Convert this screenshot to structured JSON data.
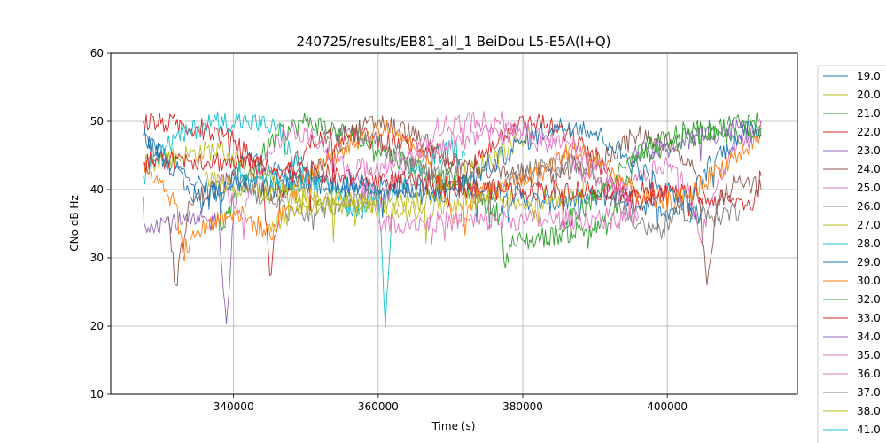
{
  "chart_data": {
    "type": "line",
    "title": "240725/results/EB81_all_1 BeiDou L5-E5A(I+Q)",
    "xlabel": "Time (s)",
    "ylabel": "CNo dB Hz",
    "xlim": [
      323000,
      418000
    ],
    "ylim": [
      10,
      60
    ],
    "x_ticks": [
      340000,
      360000,
      380000,
      400000
    ],
    "x_tick_labels": [
      "340000",
      "360000",
      "380000",
      "400000"
    ],
    "y_ticks": [
      10,
      20,
      30,
      40,
      50,
      60
    ],
    "y_tick_labels": [
      "10",
      "20",
      "30",
      "40",
      "50",
      "60"
    ],
    "grid": true,
    "legend_position": "right, outside plot, clipped",
    "series": [
      {
        "name": "19.0",
        "color": "#1f77b4",
        "points": [
          [
            327500,
            48
          ],
          [
            331000,
            44
          ],
          [
            335000,
            41
          ],
          [
            338000,
            39
          ],
          [
            342000,
            45
          ],
          [
            348000,
            41
          ],
          [
            355000,
            40.5
          ],
          [
            375000,
            40
          ],
          [
            383000,
            38
          ],
          [
            392000,
            39
          ],
          [
            398000,
            37.5
          ],
          [
            405000,
            36.5
          ]
        ]
      },
      {
        "name": "20.0",
        "color": "#bcbd22",
        "points": [
          [
            327500,
            44
          ],
          [
            333000,
            45
          ],
          [
            338000,
            46
          ],
          [
            341000,
            44
          ],
          [
            347000,
            40
          ],
          [
            352000,
            38
          ],
          [
            358000,
            37.5
          ],
          [
            365000,
            38
          ],
          [
            370000,
            41
          ],
          [
            375000,
            44
          ],
          [
            379000,
            47
          ],
          [
            381000,
            48
          ]
        ]
      },
      {
        "name": "21.0",
        "color": "#2ca02c",
        "points": [
          [
            338000,
            34
          ],
          [
            342000,
            42
          ],
          [
            346000,
            48
          ],
          [
            350000,
            50
          ],
          [
            356000,
            48
          ],
          [
            360000,
            46
          ],
          [
            368000,
            42
          ],
          [
            373000,
            40
          ],
          [
            377000,
            36
          ],
          [
            377600,
            28.5
          ],
          [
            378200,
            32
          ],
          [
            392000,
            35
          ],
          [
            396000,
            45
          ],
          [
            404000,
            48
          ],
          [
            410000,
            50
          ],
          [
            413000,
            50
          ]
        ]
      },
      {
        "name": "22.0",
        "color": "#d62728",
        "points": [
          [
            327500,
            50
          ],
          [
            332000,
            49.5
          ],
          [
            336000,
            49
          ],
          [
            340000,
            47
          ],
          [
            344000,
            43
          ],
          [
            345000,
            27.5
          ],
          [
            347000,
            42
          ],
          [
            351000,
            47
          ],
          [
            356000,
            48
          ],
          [
            362000,
            47
          ],
          [
            368000,
            46
          ],
          [
            372000,
            42
          ],
          [
            375000,
            46
          ],
          [
            378000,
            49
          ],
          [
            382000,
            50
          ],
          [
            386000,
            48
          ],
          [
            390000,
            45
          ],
          [
            393000,
            40
          ],
          [
            396000,
            38
          ],
          [
            401000,
            39.5
          ],
          [
            406000,
            38.5
          ],
          [
            412000,
            38
          ],
          [
            413000,
            42
          ]
        ]
      },
      {
        "name": "23.0",
        "color": "#9467bd",
        "points": [
          [
            327500,
            39
          ],
          [
            327600,
            35.2
          ],
          [
            338000,
            35.3
          ],
          [
            339000,
            20.3
          ],
          [
            340000,
            36
          ]
        ]
      },
      {
        "name": "24.0",
        "color": "#8c564b",
        "points": [
          [
            331000,
            36
          ],
          [
            332000,
            26
          ],
          [
            334000,
            38
          ],
          [
            340000,
            42
          ],
          [
            346000,
            39
          ],
          [
            352000,
            44
          ],
          [
            356000,
            48
          ],
          [
            360000,
            50
          ],
          [
            365000,
            48
          ],
          [
            370000,
            44
          ],
          [
            378000,
            42
          ],
          [
            385000,
            42
          ],
          [
            390000,
            44
          ],
          [
            396000,
            48
          ],
          [
            400000,
            47
          ],
          [
            404000,
            42
          ],
          [
            405500,
            26
          ],
          [
            407000,
            38
          ],
          [
            410000,
            42
          ],
          [
            413000,
            40
          ]
        ]
      },
      {
        "name": "25.0",
        "color": "#e377c2",
        "points": [
          [
            338000,
            42
          ],
          [
            341000,
            36
          ],
          [
            344000,
            44
          ],
          [
            348000,
            49
          ],
          [
            352000,
            47
          ],
          [
            356000,
            42
          ],
          [
            360000,
            38
          ],
          [
            364000,
            44
          ],
          [
            368000,
            49
          ],
          [
            372000,
            50
          ],
          [
            377000,
            50
          ],
          [
            380000,
            48
          ],
          [
            384000,
            46
          ],
          [
            388000,
            43
          ],
          [
            392000,
            40
          ],
          [
            396000,
            42
          ],
          [
            400000,
            44
          ],
          [
            403000,
            40
          ],
          [
            404500,
            33
          ],
          [
            406000,
            38
          ],
          [
            409000,
            46
          ],
          [
            413000,
            49
          ]
        ]
      },
      {
        "name": "26.0",
        "color": "#7f7f7f",
        "points": [
          [
            340000,
            42
          ],
          [
            345000,
            38
          ],
          [
            350000,
            36.5
          ],
          [
            355000,
            38
          ],
          [
            362000,
            40
          ],
          [
            370000,
            43
          ],
          [
            375000,
            39
          ],
          [
            378000,
            42
          ],
          [
            382000,
            43
          ],
          [
            388000,
            44
          ],
          [
            393000,
            38
          ],
          [
            396000,
            35
          ],
          [
            399000,
            34
          ],
          [
            402000,
            37
          ],
          [
            406000,
            36
          ],
          [
            410000,
            37
          ]
        ]
      },
      {
        "name": "27.0",
        "color": "#bcbd22",
        "points": [
          [
            345000,
            35
          ],
          [
            350000,
            37.5
          ],
          [
            360000,
            37.5
          ],
          [
            366000,
            36.5
          ],
          [
            370000,
            38
          ],
          [
            376000,
            39
          ],
          [
            380000,
            38
          ],
          [
            385000,
            39
          ],
          [
            390000,
            40
          ]
        ]
      },
      {
        "name": "28.0",
        "color": "#17becf",
        "points": [
          [
            327500,
            42
          ],
          [
            330000,
            46
          ],
          [
            333000,
            48
          ],
          [
            337000,
            50
          ],
          [
            342000,
            50
          ],
          [
            346000,
            49
          ],
          [
            348000,
            45
          ],
          [
            351000,
            42
          ],
          [
            354000,
            40
          ],
          [
            357000,
            36
          ],
          [
            360000,
            40
          ],
          [
            361000,
            19.8
          ],
          [
            362000,
            40
          ],
          [
            366000,
            44
          ],
          [
            370000,
            46
          ],
          [
            372000,
            45
          ]
        ]
      },
      {
        "name": "29.0",
        "color": "#1f77b4",
        "points": [
          [
            327500,
            48
          ],
          [
            331000,
            44
          ],
          [
            334000,
            39
          ],
          [
            337000,
            40
          ],
          [
            341000,
            41
          ],
          [
            345000,
            40
          ],
          [
            349000,
            42
          ],
          [
            353000,
            40
          ],
          [
            358000,
            41
          ],
          [
            362000,
            40
          ],
          [
            368000,
            39
          ],
          [
            372000,
            41
          ],
          [
            376000,
            44
          ],
          [
            380000,
            47
          ],
          [
            384000,
            49
          ],
          [
            388000,
            49.5
          ],
          [
            392000,
            47
          ],
          [
            396000,
            43
          ],
          [
            400000,
            40
          ],
          [
            403000,
            38
          ],
          [
            406000,
            44
          ],
          [
            410000,
            48
          ],
          [
            413000,
            49
          ]
        ]
      },
      {
        "name": "30.0",
        "color": "#ff7f0e",
        "points": [
          [
            327500,
            44
          ],
          [
            330000,
            41
          ],
          [
            332000,
            38
          ],
          [
            333000,
            30.5
          ],
          [
            335000,
            34
          ],
          [
            340000,
            37
          ],
          [
            345000,
            33.5
          ],
          [
            350000,
            42
          ],
          [
            355000,
            46
          ],
          [
            360000,
            49
          ],
          [
            364000,
            48
          ],
          [
            368000,
            42
          ],
          [
            371000,
            35
          ],
          [
            374000,
            40
          ],
          [
            378000,
            40.5
          ],
          [
            383000,
            43
          ],
          [
            387000,
            46
          ],
          [
            391000,
            44
          ],
          [
            395000,
            40
          ],
          [
            399000,
            38
          ],
          [
            403000,
            39
          ],
          [
            407000,
            43
          ],
          [
            411000,
            46
          ],
          [
            413000,
            48
          ]
        ]
      },
      {
        "name": "32.0",
        "color": "#2ca02c",
        "points": [
          [
            385000,
            34
          ],
          [
            389000,
            38
          ],
          [
            393000,
            42
          ],
          [
            397000,
            46
          ],
          [
            401000,
            48
          ],
          [
            405000,
            49
          ],
          [
            409000,
            48
          ],
          [
            413000,
            49
          ]
        ]
      },
      {
        "name": "33.0",
        "color": "#d62728",
        "points": [
          [
            327500,
            44
          ],
          [
            333000,
            44.5
          ],
          [
            340000,
            44
          ],
          [
            346000,
            43
          ],
          [
            355000,
            42
          ],
          [
            365000,
            41
          ],
          [
            375000,
            40
          ],
          [
            385000,
            40
          ],
          [
            392000,
            40
          ],
          [
            400000,
            39.5
          ]
        ]
      },
      {
        "name": "34.0",
        "color": "#9467bd",
        "points": [
          [
            395000,
            45
          ],
          [
            400000,
            46
          ],
          [
            405000,
            48
          ],
          [
            410000,
            49
          ],
          [
            413000,
            48
          ]
        ]
      },
      {
        "name": "35.0",
        "color": "#e377c2",
        "points": [
          [
            357000,
            43
          ],
          [
            362000,
            44
          ],
          [
            368000,
            46
          ],
          [
            374000,
            48
          ],
          [
            380000,
            48.5
          ],
          [
            386000,
            47
          ],
          [
            392000,
            42
          ],
          [
            396000,
            36
          ]
        ]
      },
      {
        "name": "36.0",
        "color": "#e377c2",
        "points": [
          [
            360000,
            35
          ],
          [
            370000,
            35.3
          ],
          [
            380000,
            35.5
          ],
          [
            390000,
            35.7
          ],
          [
            396000,
            36
          ]
        ]
      },
      {
        "name": "37.0",
        "color": "#7f7f7f",
        "points": [
          [
            352000,
            47
          ],
          [
            356000,
            49
          ],
          [
            360000,
            47
          ],
          [
            364000,
            44
          ],
          [
            368000,
            42
          ]
        ]
      },
      {
        "name": "38.0",
        "color": "#bcbd22",
        "points": [
          [
            336000,
            42
          ],
          [
            342000,
            40
          ],
          [
            348000,
            39
          ],
          [
            354000,
            38.5
          ],
          [
            360000,
            38
          ]
        ]
      },
      {
        "name": "41.0",
        "color": "#17becf",
        "points": [
          [
            340000,
            43
          ],
          [
            344000,
            42
          ],
          [
            348000,
            41
          ],
          [
            352000,
            41.5
          ]
        ]
      }
    ]
  }
}
